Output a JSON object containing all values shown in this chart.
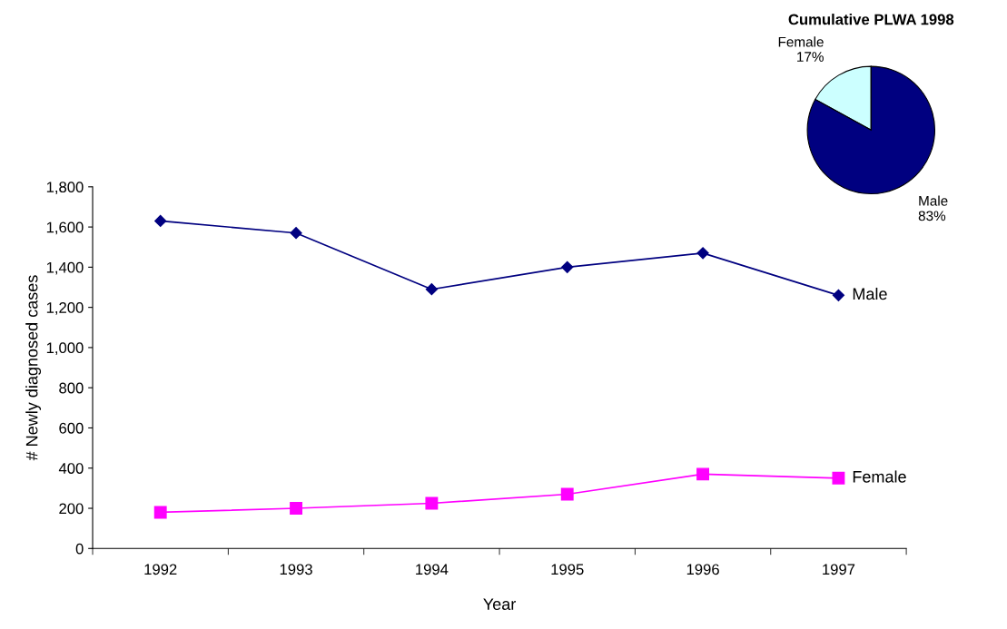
{
  "chart_data": [
    {
      "type": "line",
      "xlabel": "Year",
      "ylabel": "# Newly diagnosed cases",
      "categories": [
        "1992",
        "1993",
        "1994",
        "1995",
        "1996",
        "1997"
      ],
      "series": [
        {
          "name": "Male",
          "color": "#000080",
          "marker": "diamond",
          "values": [
            1630,
            1570,
            1290,
            1400,
            1470,
            1260
          ]
        },
        {
          "name": "Female",
          "color": "#ff00ff",
          "marker": "square",
          "values": [
            180,
            200,
            225,
            270,
            370,
            350
          ]
        }
      ],
      "ylim": [
        0,
        1800
      ],
      "yticks": [
        {
          "value": 0,
          "label": "0"
        },
        {
          "value": 200,
          "label": "200"
        },
        {
          "value": 400,
          "label": "400"
        },
        {
          "value": 600,
          "label": "600"
        },
        {
          "value": 800,
          "label": "800"
        },
        {
          "value": 1000,
          "label": "1,000"
        },
        {
          "value": 1200,
          "label": "1,200"
        },
        {
          "value": 1400,
          "label": "1,400"
        },
        {
          "value": 1600,
          "label": "1,600"
        },
        {
          "value": 1800,
          "label": "1,800"
        }
      ],
      "grid": false,
      "legend": false
    },
    {
      "type": "pie",
      "title": "Cumulative PLWA 1998",
      "categories": [
        "Female",
        "Male"
      ],
      "values": [
        17,
        83
      ],
      "colors": [
        "#ccffff",
        "#000080"
      ],
      "value_labels": [
        "17%",
        "83%"
      ]
    }
  ]
}
